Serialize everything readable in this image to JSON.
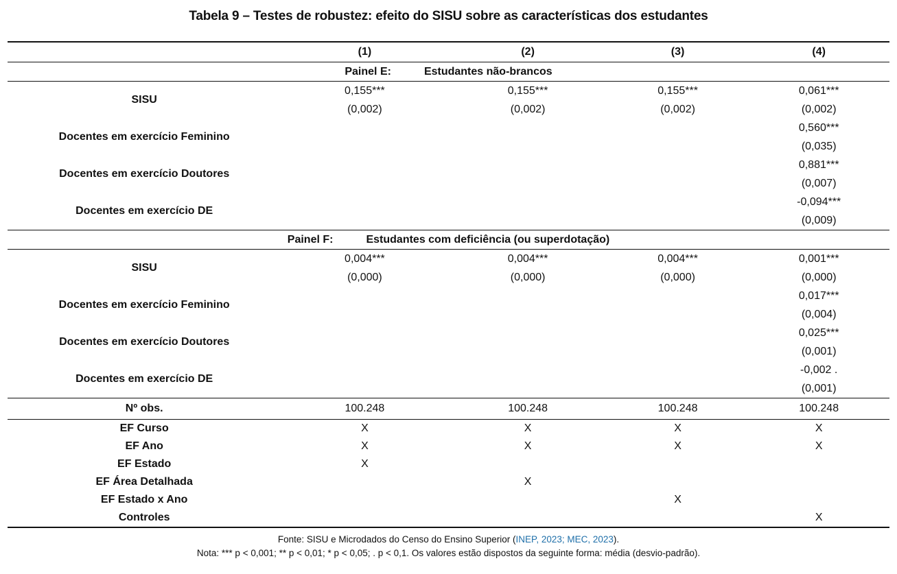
{
  "title": "Tabela 9 – Testes de robustez: efeito do SISU sobre as características dos estudantes",
  "columns": [
    "(1)",
    "(2)",
    "(3)",
    "(4)"
  ],
  "panels": [
    {
      "name": "Painel E:",
      "description": "Estudantes não-brancos",
      "rows": [
        {
          "label": "SISU",
          "cells": [
            {
              "est": "0,155***",
              "se": "(0,002)"
            },
            {
              "est": "0,155***",
              "se": "(0,002)"
            },
            {
              "est": "0,155***",
              "se": "(0,002)"
            },
            {
              "est": "0,061***",
              "se": "(0,002)"
            }
          ]
        },
        {
          "label": "Docentes em exercício Feminino",
          "cells": [
            {
              "est": "",
              "se": ""
            },
            {
              "est": "",
              "se": ""
            },
            {
              "est": "",
              "se": ""
            },
            {
              "est": "0,560***",
              "se": "(0,035)"
            }
          ]
        },
        {
          "label": "Docentes em exercício Doutores",
          "cells": [
            {
              "est": "",
              "se": ""
            },
            {
              "est": "",
              "se": ""
            },
            {
              "est": "",
              "se": ""
            },
            {
              "est": "0,881***",
              "se": "(0,007)"
            }
          ]
        },
        {
          "label": "Docentes em exercício DE",
          "cells": [
            {
              "est": "",
              "se": ""
            },
            {
              "est": "",
              "se": ""
            },
            {
              "est": "",
              "se": ""
            },
            {
              "est": "-0,094***",
              "se": "(0,009)"
            }
          ]
        }
      ]
    },
    {
      "name": "Painel F:",
      "description": "Estudantes com deficiência (ou superdotação)",
      "rows": [
        {
          "label": "SISU",
          "cells": [
            {
              "est": "0,004***",
              "se": "(0,000)"
            },
            {
              "est": "0,004***",
              "se": "(0,000)"
            },
            {
              "est": "0,004***",
              "se": "(0,000)"
            },
            {
              "est": "0,001***",
              "se": "(0,000)"
            }
          ]
        },
        {
          "label": "Docentes em exercício Feminino",
          "cells": [
            {
              "est": "",
              "se": ""
            },
            {
              "est": "",
              "se": ""
            },
            {
              "est": "",
              "se": ""
            },
            {
              "est": "0,017***",
              "se": "(0,004)"
            }
          ]
        },
        {
          "label": "Docentes em exercício Doutores",
          "cells": [
            {
              "est": "",
              "se": ""
            },
            {
              "est": "",
              "se": ""
            },
            {
              "est": "",
              "se": ""
            },
            {
              "est": "0,025***",
              "se": "(0,001)"
            }
          ]
        },
        {
          "label": "Docentes em exercício DE",
          "cells": [
            {
              "est": "",
              "se": ""
            },
            {
              "est": "",
              "se": ""
            },
            {
              "est": "",
              "se": ""
            },
            {
              "est": "-0,002 .",
              "se": "(0,001)"
            }
          ]
        }
      ]
    }
  ],
  "observations": {
    "label": "Nº obs.",
    "values": [
      "100.248",
      "100.248",
      "100.248",
      "100.248"
    ]
  },
  "fixed_effects": [
    {
      "label": "EF Curso",
      "marks": [
        "X",
        "X",
        "X",
        "X"
      ]
    },
    {
      "label": "EF Ano",
      "marks": [
        "X",
        "X",
        "X",
        "X"
      ]
    },
    {
      "label": "EF Estado",
      "marks": [
        "X",
        "",
        "",
        ""
      ]
    },
    {
      "label": "EF Área Detalhada",
      "marks": [
        "",
        "X",
        "",
        ""
      ]
    },
    {
      "label": "EF Estado x Ano",
      "marks": [
        "",
        "",
        "X",
        ""
      ]
    },
    {
      "label": "Controles",
      "marks": [
        "",
        "",
        "",
        "X"
      ]
    }
  ],
  "footer": {
    "fonte_prefix": "Fonte: SISU e Microdados do Censo do Ensino Superior (",
    "fonte_link": "INEP, 2023; MEC, 2023",
    "fonte_suffix": ").",
    "nota": "Nota: *** p < 0,001; ** p < 0,01; * p < 0,05; . p < 0,1. Os valores estão dispostos da seguinte forma: média (desvio-padrão)."
  },
  "colors": {
    "text": "#111111",
    "link": "#1e6fa9",
    "background": "#ffffff"
  }
}
